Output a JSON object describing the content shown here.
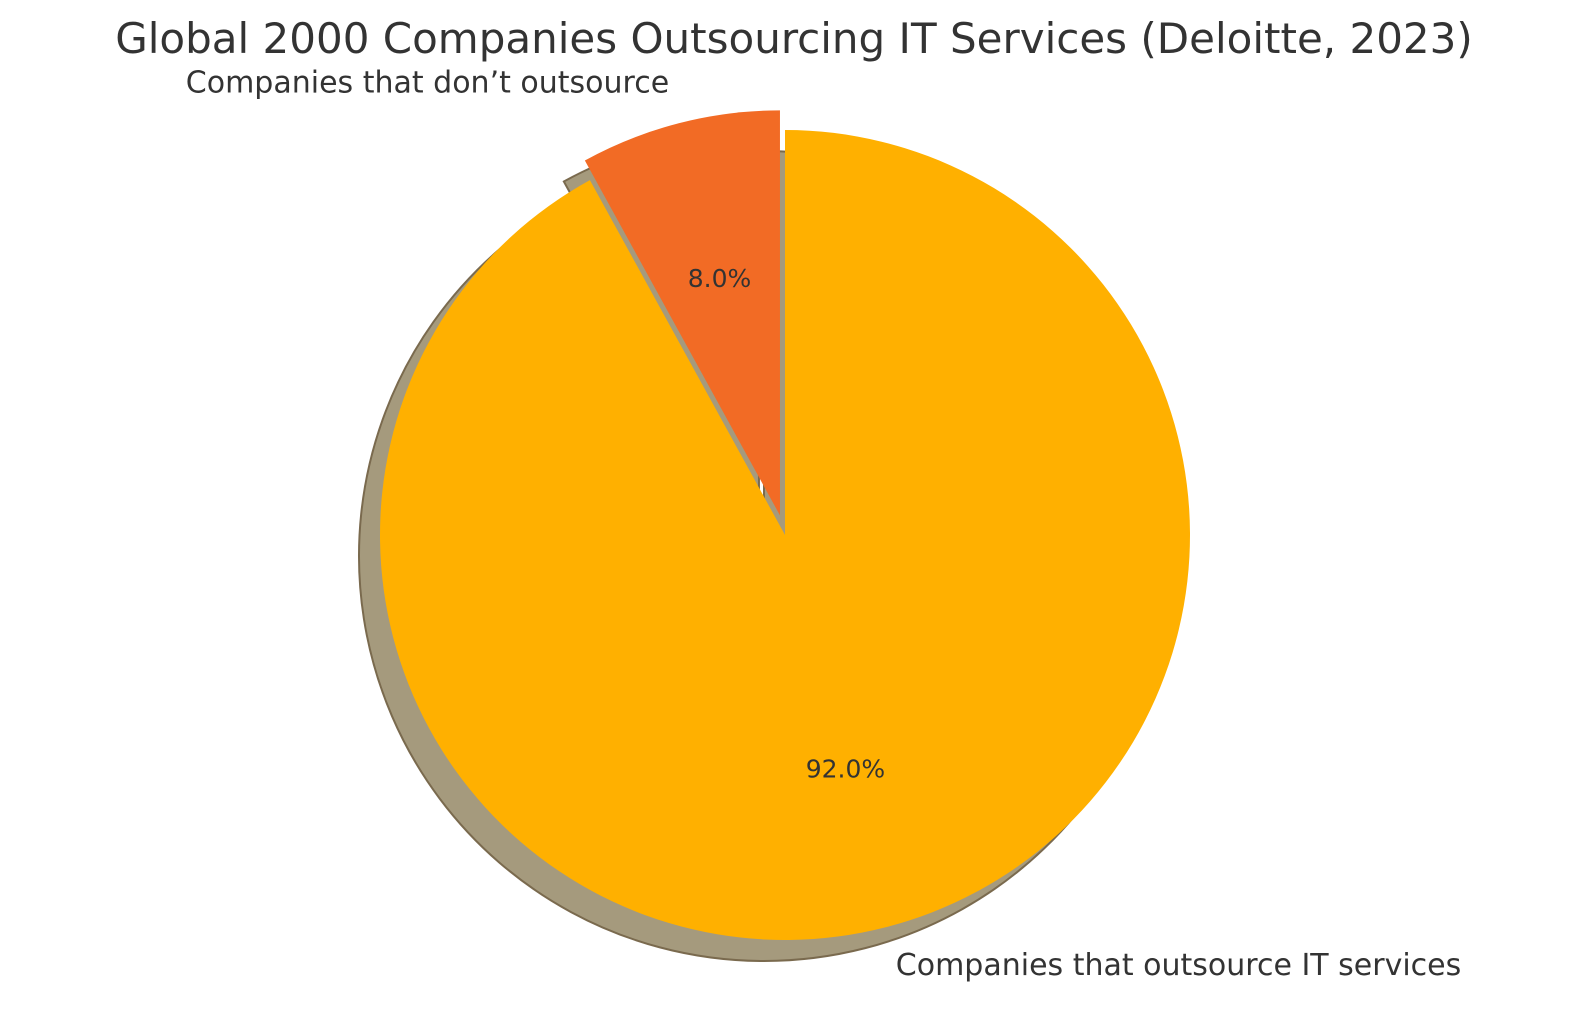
{
  "chart_data": {
    "type": "pie",
    "title": "Global 2000 Companies Outsourcing IT Services (Deloitte, 2023)",
    "start_angle_deg": 90,
    "direction": "clockwise",
    "shadow": true,
    "autopct_format": "0.0",
    "slices": [
      {
        "label": "Companies that outsource IT services",
        "value": 92.0,
        "pct_label": "92.0%",
        "color": "#FFB000",
        "explode": 0
      },
      {
        "label": "Companies that don’t outsource",
        "value": 8.0,
        "pct_label": "8.0%",
        "color": "#F26B25",
        "explode": 0.05
      }
    ],
    "colors": {
      "text": "#333333",
      "shadow": "#A59A7D",
      "shadow_edge": "#7A6A4E"
    }
  }
}
